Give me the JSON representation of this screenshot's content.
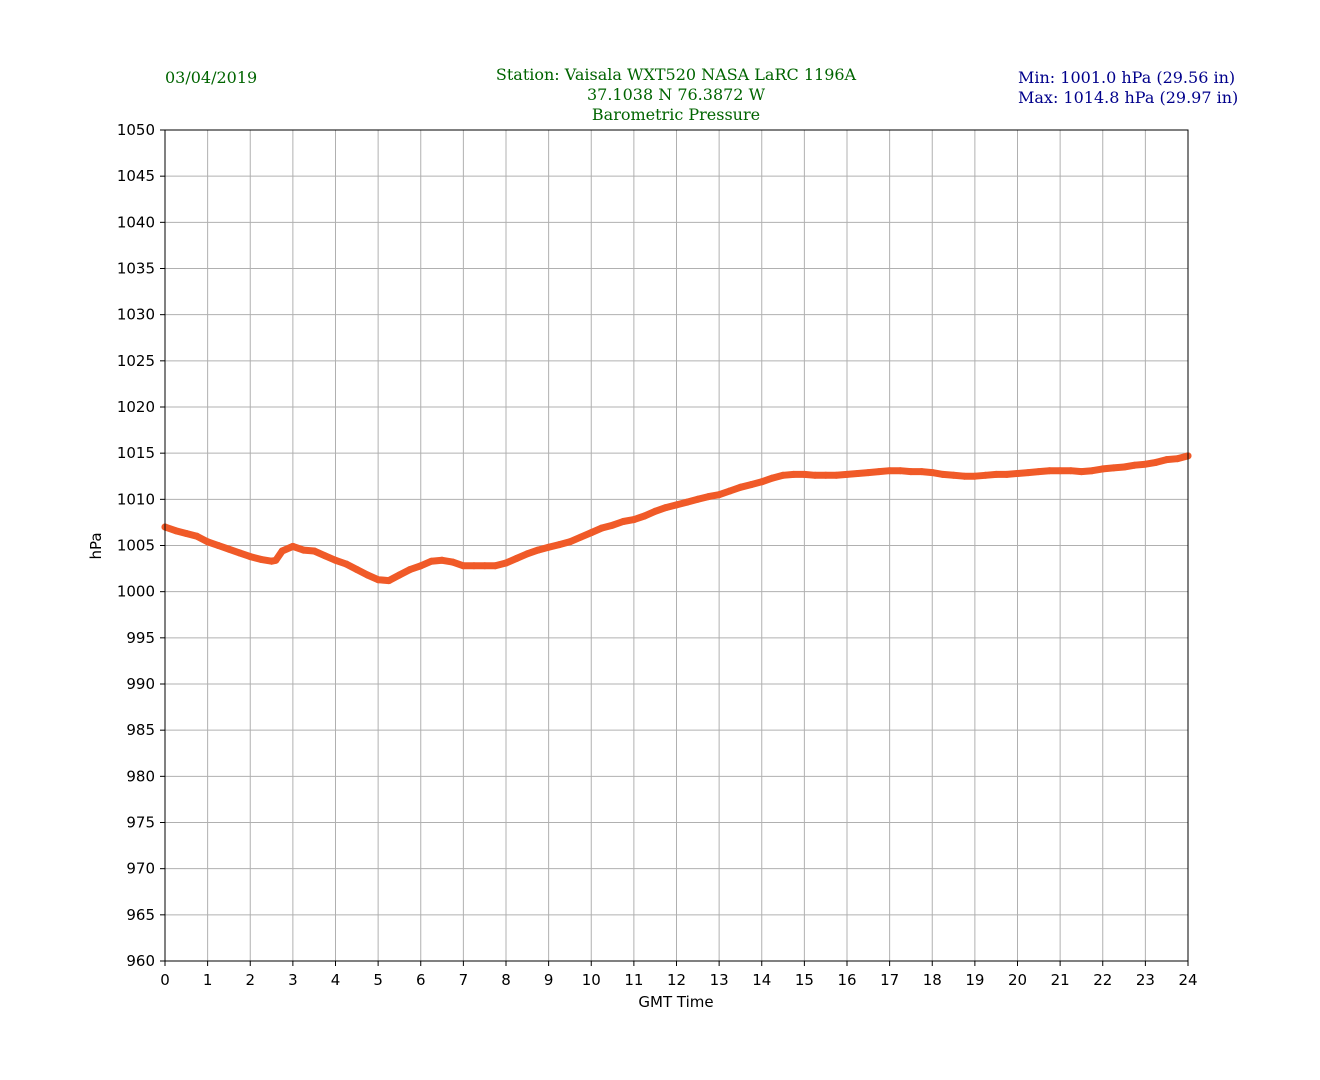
{
  "header": {
    "date": "03/04/2019",
    "station_line1": "Station:  Vaisala WXT520  NASA LaRC 1196A",
    "station_line2": "37.1038 N 76.3872 W",
    "station_line3": "Barometric Pressure",
    "min_text": "Min: 1001.0 hPa (29.56 in)",
    "max_text": "Max: 1014.8 hPa (29.97 in)"
  },
  "colors": {
    "series": "#f05a28",
    "grid": "#b0b0b0",
    "header_green": "#006400",
    "header_blue": "#00008b"
  },
  "chart_data": {
    "type": "line",
    "title": "Barometric Pressure",
    "xlabel": "GMT Time",
    "ylabel": "hPa",
    "xlim": [
      0,
      24
    ],
    "ylim": [
      960,
      1050
    ],
    "xticks": [
      0,
      1,
      2,
      3,
      4,
      5,
      6,
      7,
      8,
      9,
      10,
      11,
      12,
      13,
      14,
      15,
      16,
      17,
      18,
      19,
      20,
      21,
      22,
      23,
      24
    ],
    "yticks": [
      960,
      965,
      970,
      975,
      980,
      985,
      990,
      995,
      1000,
      1005,
      1010,
      1015,
      1020,
      1025,
      1030,
      1035,
      1040,
      1045,
      1050
    ],
    "grid": true,
    "series": [
      {
        "x": [
          0,
          0.25,
          0.5,
          0.75,
          1,
          1.25,
          1.5,
          1.75,
          2,
          2.25,
          2.5,
          2.6,
          2.75,
          3,
          3.25,
          3.5,
          3.75,
          4,
          4.25,
          4.5,
          4.75,
          5,
          5.25,
          5.5,
          5.75,
          6,
          6.25,
          6.5,
          6.75,
          7,
          7.25,
          7.5,
          7.75,
          8,
          8.25,
          8.5,
          8.75,
          9,
          9.25,
          9.5,
          9.75,
          10,
          10.25,
          10.5,
          10.75,
          11,
          11.25,
          11.5,
          11.75,
          12,
          12.25,
          12.5,
          12.75,
          13,
          13.25,
          13.5,
          13.75,
          14,
          14.25,
          14.5,
          14.75,
          15,
          15.25,
          15.5,
          15.75,
          16,
          16.25,
          16.5,
          16.75,
          17,
          17.25,
          17.5,
          17.75,
          18,
          18.25,
          18.5,
          18.75,
          19,
          19.25,
          19.5,
          19.75,
          20,
          20.25,
          20.5,
          20.75,
          21,
          21.25,
          21.5,
          21.75,
          22,
          22.25,
          22.5,
          22.75,
          23,
          23.25,
          23.5,
          23.75,
          24
        ],
        "values": [
          1007.0,
          1006.6,
          1006.3,
          1006.0,
          1005.4,
          1005.0,
          1004.6,
          1004.2,
          1003.8,
          1003.5,
          1003.3,
          1003.4,
          1004.4,
          1004.9,
          1004.5,
          1004.4,
          1003.9,
          1003.4,
          1003.0,
          1002.4,
          1001.8,
          1001.3,
          1001.2,
          1001.8,
          1002.4,
          1002.8,
          1003.3,
          1003.4,
          1003.2,
          1002.8,
          1002.8,
          1002.8,
          1002.8,
          1003.1,
          1003.6,
          1004.1,
          1004.5,
          1004.8,
          1005.1,
          1005.4,
          1005.9,
          1006.4,
          1006.9,
          1007.2,
          1007.6,
          1007.8,
          1008.2,
          1008.7,
          1009.1,
          1009.4,
          1009.7,
          1010.0,
          1010.3,
          1010.5,
          1010.9,
          1011.3,
          1011.6,
          1011.9,
          1012.3,
          1012.6,
          1012.7,
          1012.7,
          1012.6,
          1012.6,
          1012.6,
          1012.7,
          1012.8,
          1012.9,
          1013.0,
          1013.1,
          1013.1,
          1013.0,
          1013.0,
          1012.9,
          1012.7,
          1012.6,
          1012.5,
          1012.5,
          1012.6,
          1012.7,
          1012.7,
          1012.8,
          1012.9,
          1013.0,
          1013.1,
          1013.1,
          1013.1,
          1013.0,
          1013.1,
          1013.3,
          1013.4,
          1013.5,
          1013.7,
          1013.8,
          1014.0,
          1014.3,
          1014.4,
          1014.7
        ]
      }
    ]
  }
}
